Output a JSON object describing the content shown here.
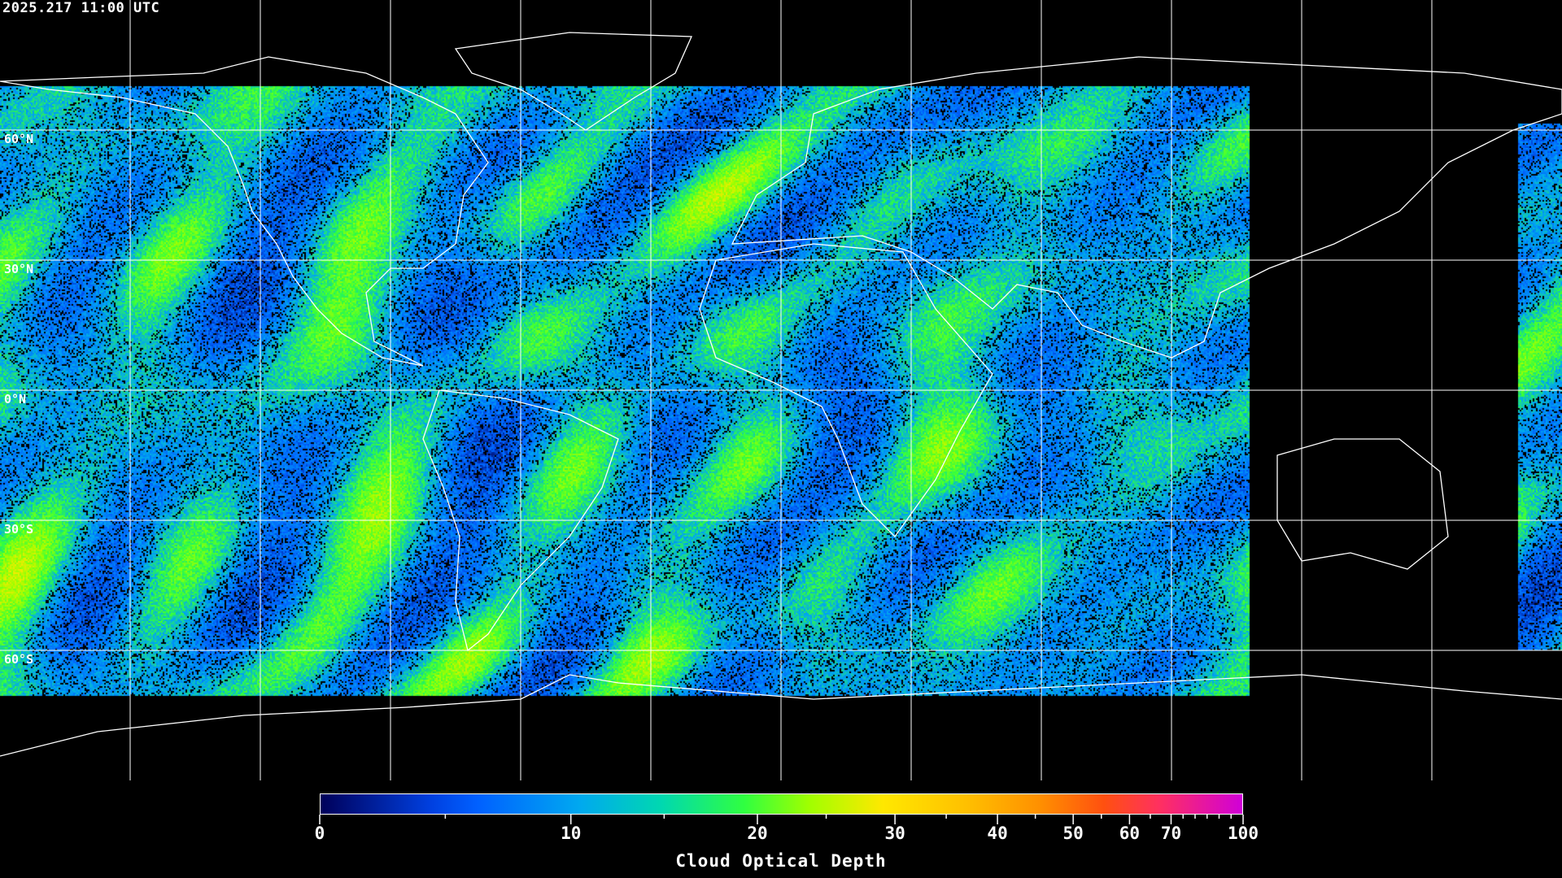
{
  "timestamp": "2025.217 11:00 UTC",
  "lat_labels": [
    {
      "text": "60°N",
      "lat": 60
    },
    {
      "text": "30°N",
      "lat": 30
    },
    {
      "text": "0°N",
      "lat": 0
    },
    {
      "text": "30°S",
      "lat": -30
    },
    {
      "text": "60°S",
      "lat": -60
    }
  ],
  "grid": {
    "spacing_deg": 30,
    "color": "#ffffff"
  },
  "colorbar": {
    "title": "Cloud Optical Depth",
    "range": [
      0,
      100
    ],
    "tick_labels": [
      "0",
      "10",
      "20",
      "30",
      "40",
      "50",
      "60",
      "70",
      "100"
    ],
    "tick_values": [
      0,
      10,
      20,
      30,
      40,
      50,
      60,
      70,
      100
    ],
    "minor_tick_values": [
      5,
      15,
      25,
      35,
      45,
      55,
      65,
      75,
      80,
      85,
      90,
      95
    ],
    "colors": [
      "#00005a",
      "#0060ff",
      "#00a8f0",
      "#30ff40",
      "#a0ff00",
      "#ffe800",
      "#ffc000",
      "#ff9000",
      "#ff5010",
      "#ff3060",
      "#d000d8"
    ]
  },
  "background_color": "#000000"
}
